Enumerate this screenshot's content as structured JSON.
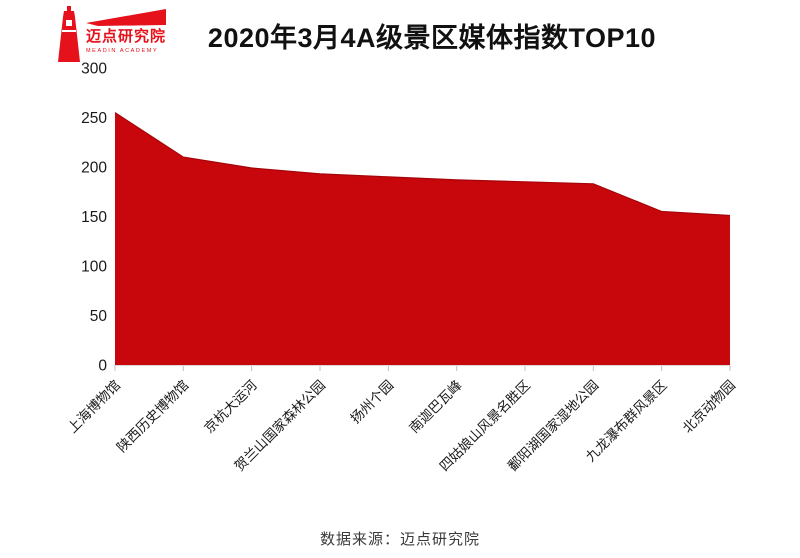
{
  "header": {
    "logo": {
      "brand_cn": "迈点研究院",
      "brand_en": "MEADIN ACADEMY"
    },
    "title": "2020年3月4A级景区媒体指数TOP10"
  },
  "chart_data": {
    "type": "area",
    "title": "2020年3月4A级景区媒体指数TOP10",
    "categories": [
      "上海博物馆",
      "陕西历史博物馆",
      "京杭大运河",
      "贺兰山国家森林公园",
      "扬州个园",
      "南迦巴瓦峰",
      "四姑娘山风景名胜区",
      "鄱阳湖国家湿地公园",
      "九龙瀑布群风景区",
      "北京动物园"
    ],
    "values": [
      255,
      210,
      199,
      193,
      190,
      187,
      185,
      183,
      155,
      151
    ],
    "xlabel": "",
    "ylabel": "",
    "ylim": [
      0,
      300
    ],
    "ytick_step": 50,
    "grid": false,
    "legend_position": "none",
    "colors": {
      "area_fill": "#c7070c",
      "area_stroke": "#a50409",
      "axis_line": "#d9d9d9",
      "tick_mark": "#bfbfbf",
      "label_text": "#1a1a1a"
    }
  },
  "footer": {
    "source": "数据来源：迈点研究院"
  }
}
